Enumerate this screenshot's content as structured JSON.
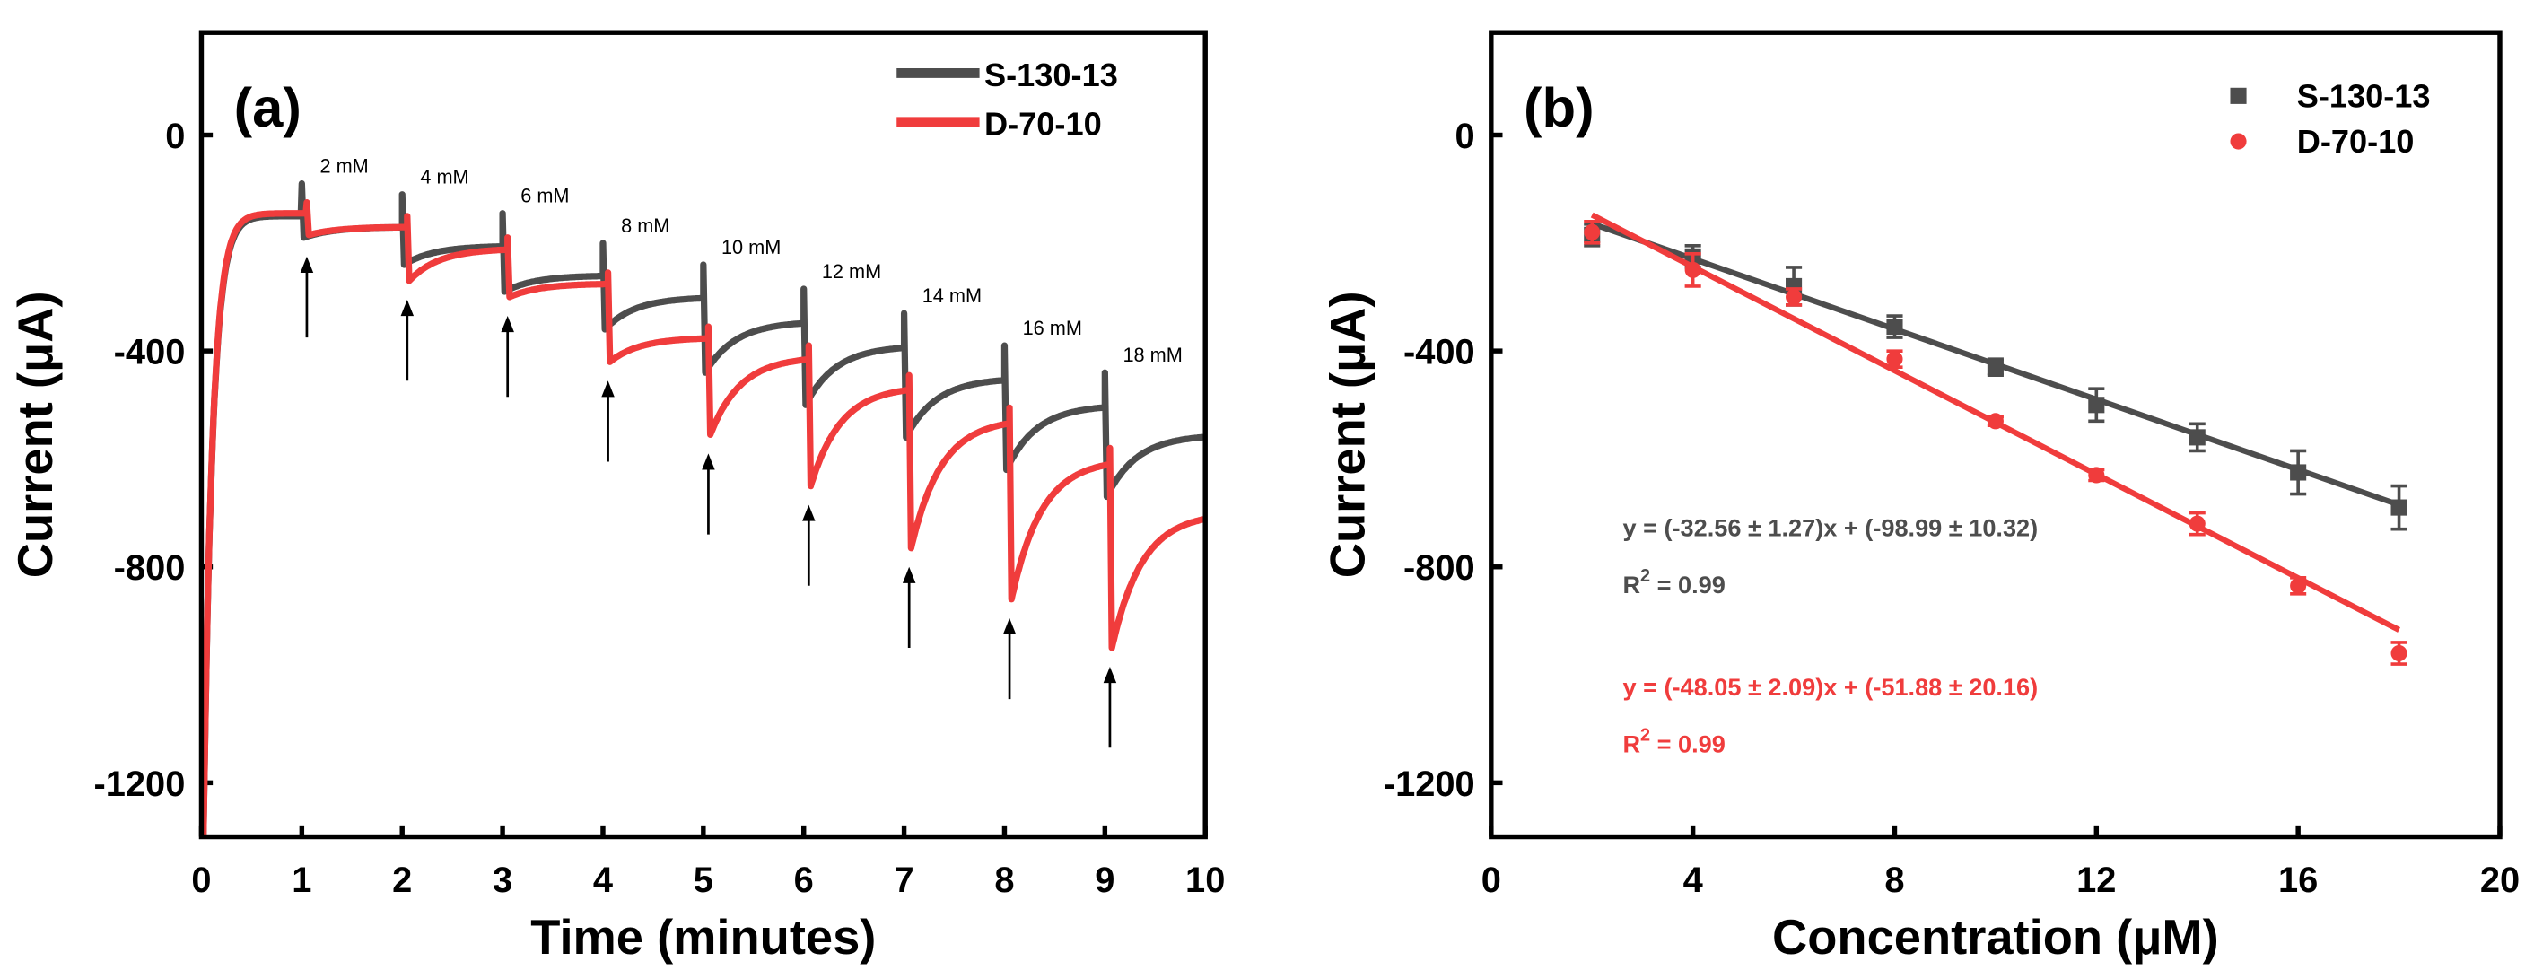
{
  "colors": {
    "s": "#4d4d4d",
    "d": "#f03c3c"
  },
  "chart_data": [
    {
      "type": "line",
      "panel_label": "(a)",
      "xlabel": "Time (minutes)",
      "ylabel": "Current (μA)",
      "xlim": [
        0,
        10
      ],
      "ylim": [
        -1300,
        190
      ],
      "xticks": [
        0,
        1,
        2,
        3,
        4,
        5,
        6,
        7,
        8,
        9,
        10
      ],
      "yticks": [
        0,
        -400,
        -800,
        -1200
      ],
      "legend": [
        "S-130-13",
        "D-70-10"
      ],
      "legend_position": "top-right",
      "step_times": [
        1,
        2,
        3,
        4,
        5,
        6,
        7,
        8,
        9
      ],
      "annotations": [
        "2 mM",
        "4 mM",
        "6 mM",
        "8 mM",
        "10 mM",
        "12 mM",
        "14 mM",
        "16 mM",
        "18 mM"
      ],
      "series": [
        {
          "name": "S-130-13",
          "plateau_start": -150,
          "segment_min": [
            -190,
            -240,
            -290,
            -360,
            -440,
            -500,
            -560,
            -620,
            -670
          ],
          "segment_end": [
            -170,
            -205,
            -260,
            -300,
            -345,
            -390,
            -450,
            -500,
            -555
          ]
        },
        {
          "name": "D-70-10",
          "plateau_start": -145,
          "segment_min": [
            -185,
            -270,
            -300,
            -420,
            -555,
            -650,
            -765,
            -860,
            -950
          ],
          "segment_end": [
            -170,
            -210,
            -275,
            -375,
            -410,
            -465,
            -525,
            -600,
            -700
          ]
        }
      ]
    },
    {
      "type": "scatter",
      "panel_label": "(b)",
      "xlabel": "Concentration (μM)",
      "ylabel": "Current (μA)",
      "xlim": [
        0,
        20
      ],
      "ylim": [
        -1300,
        190
      ],
      "xticks": [
        0,
        4,
        8,
        12,
        16,
        20
      ],
      "yticks": [
        0,
        -400,
        -800,
        -1200
      ],
      "legend": [
        "S-130-13",
        "D-70-10"
      ],
      "legend_position": "top-right",
      "x": [
        2,
        4,
        6,
        8,
        10,
        12,
        14,
        16,
        18
      ],
      "series": [
        {
          "name": "S-130-13",
          "marker": "square",
          "values": [
            -185,
            -225,
            -280,
            -355,
            -430,
            -500,
            -560,
            -625,
            -690
          ],
          "errors": [
            20,
            20,
            35,
            20,
            15,
            30,
            25,
            40,
            40
          ],
          "fit": {
            "slope": -32.56,
            "intercept": -98.99
          },
          "equation": "y = (-32.56 ± 1.27)x + (-98.99 ± 10.32)",
          "r2_label": "R",
          "r2_value": "= 0.99"
        },
        {
          "name": "D-70-10",
          "marker": "circle",
          "values": [
            -180,
            -250,
            -300,
            -415,
            -530,
            -630,
            -720,
            -835,
            -960
          ],
          "errors": [
            20,
            30,
            15,
            15,
            8,
            10,
            20,
            15,
            20
          ],
          "fit": {
            "slope": -48.05,
            "intercept": -51.88
          },
          "equation": "y = (-48.05 ± 2.09)x + (-51.88 ± 20.16)",
          "r2_label": "R",
          "r2_value": "= 0.99"
        }
      ]
    }
  ]
}
